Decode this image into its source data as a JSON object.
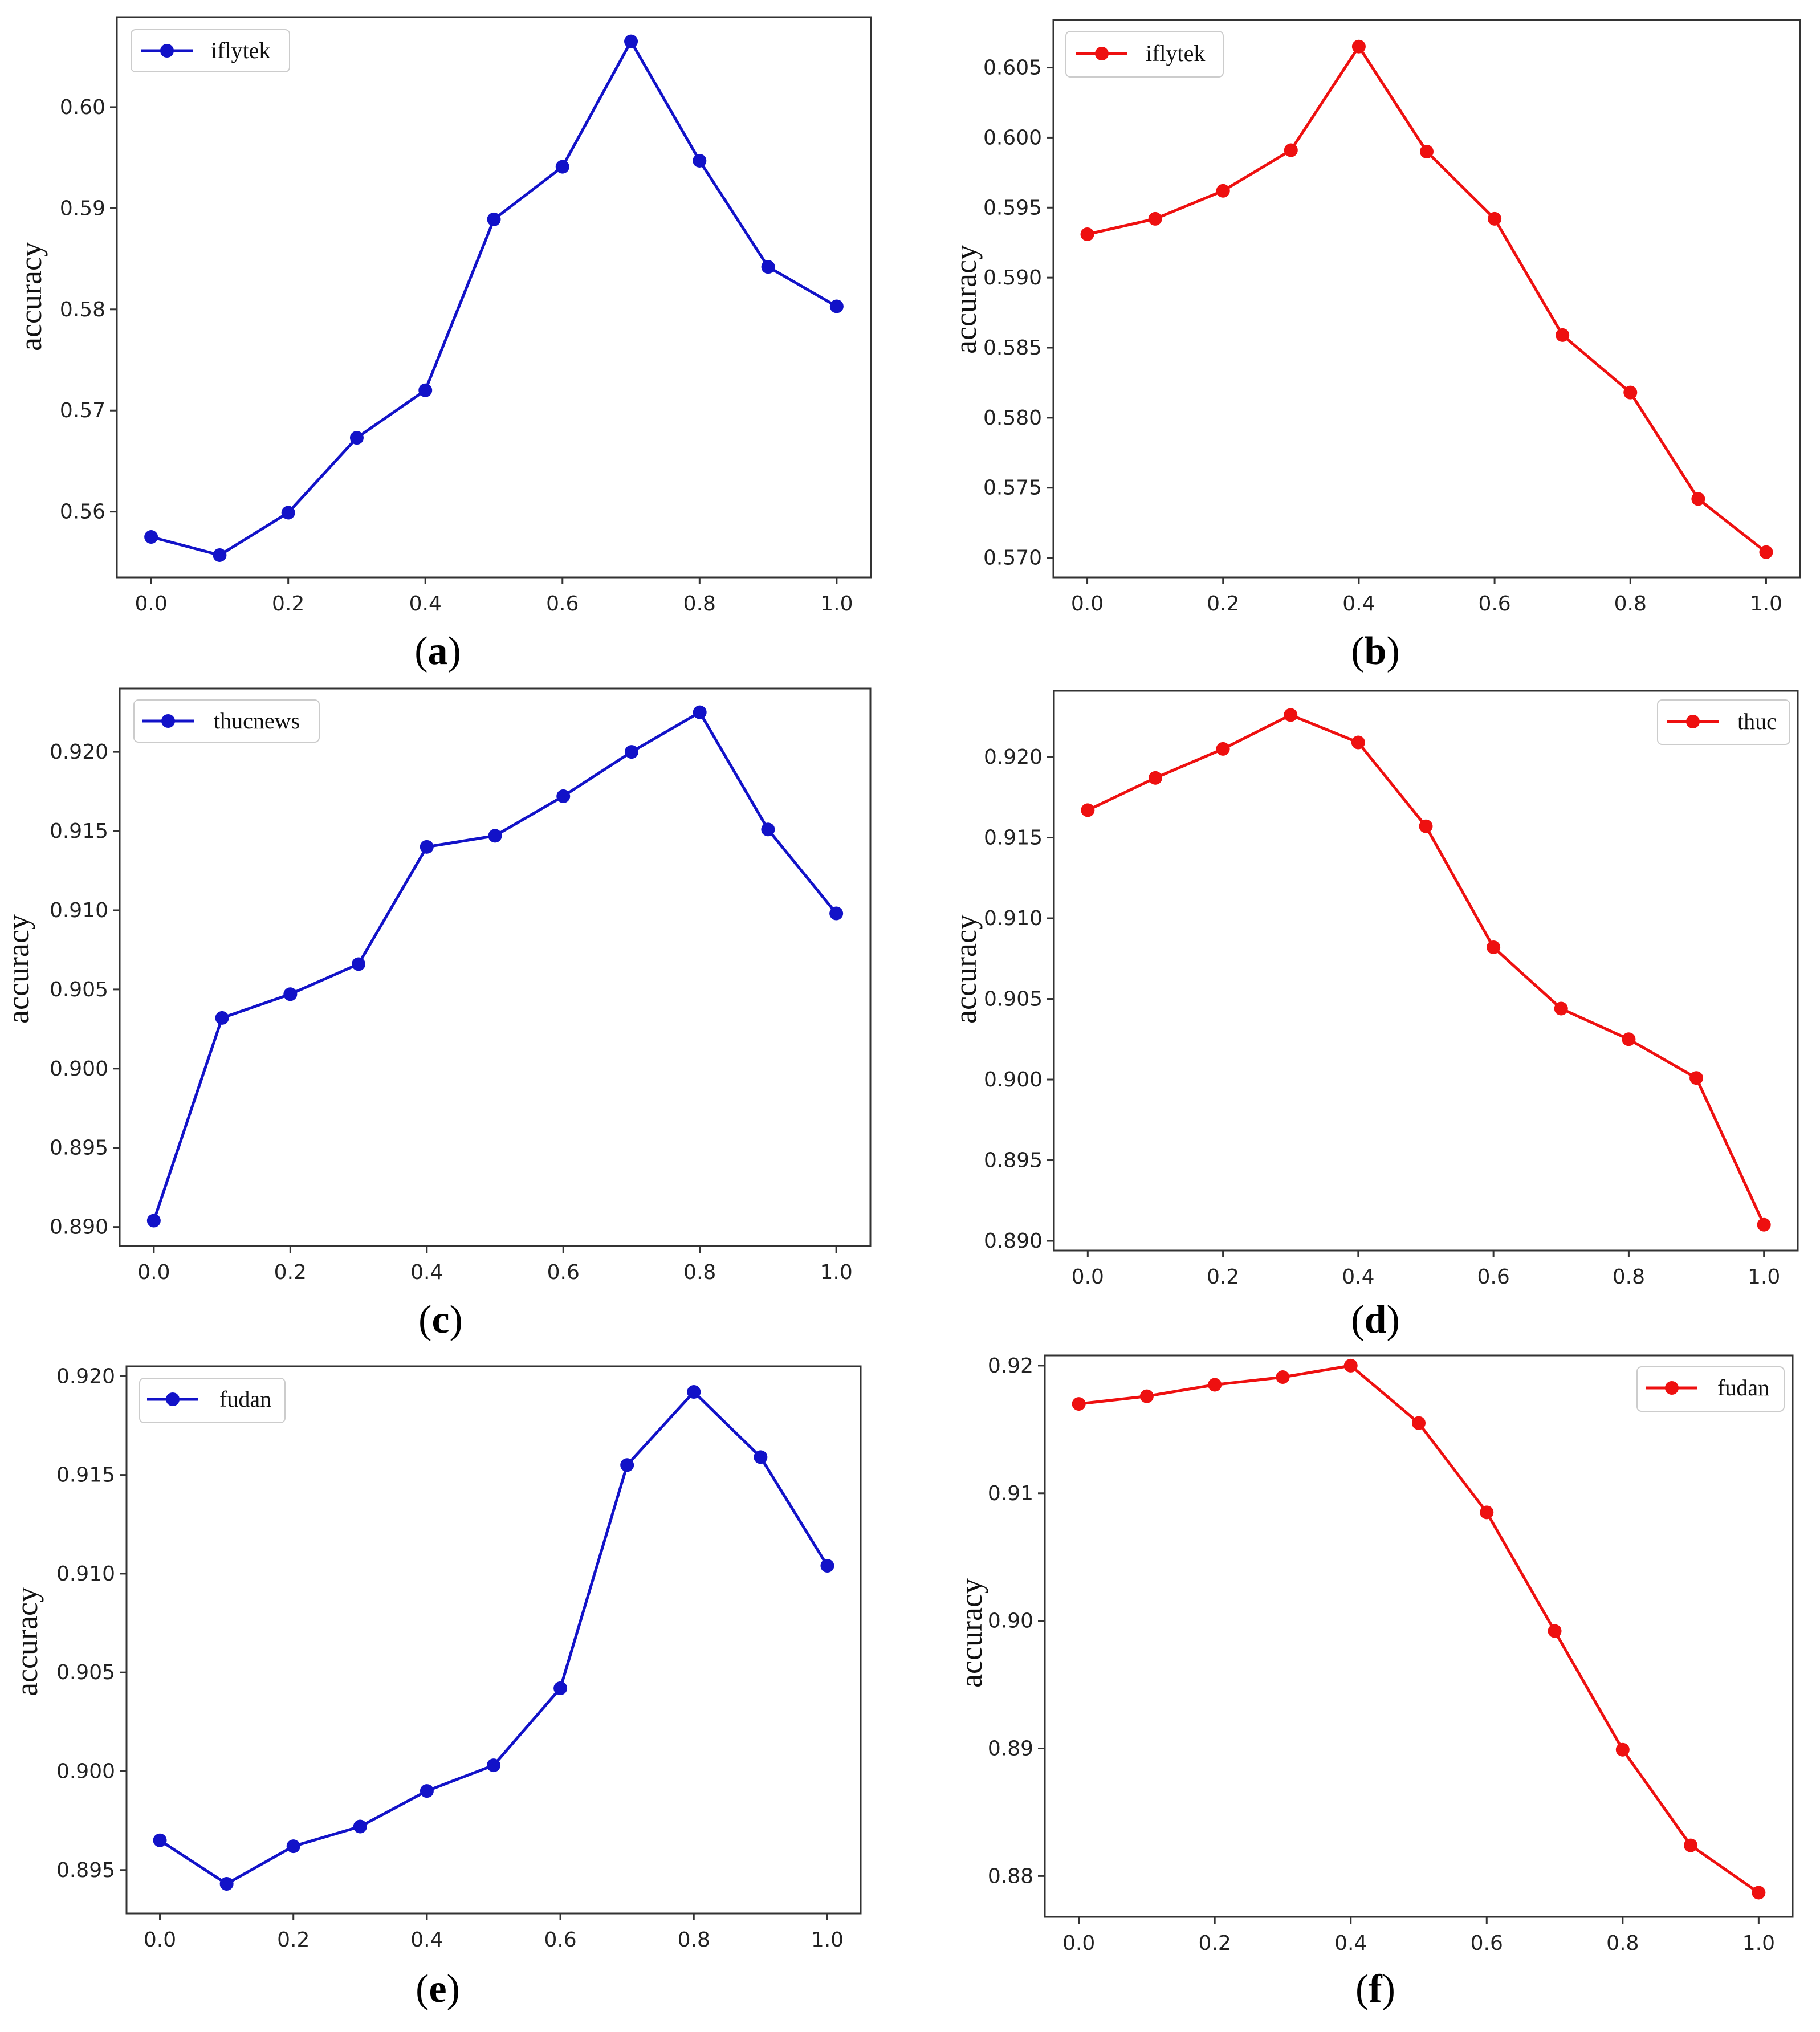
{
  "chart_data": [
    {
      "id": "a",
      "type": "line",
      "caption": "a",
      "ylabel": "accuracy",
      "xlabel": "",
      "color": "#1212c8",
      "legend": {
        "label": "iflytek",
        "position": "top-left"
      },
      "x": [
        0.0,
        0.1,
        0.2,
        0.3,
        0.4,
        0.5,
        0.6,
        0.7,
        0.8,
        0.9,
        1.0
      ],
      "values": [
        0.5575,
        0.5557,
        0.5599,
        0.5673,
        0.572,
        0.5889,
        0.5941,
        0.6065,
        0.5947,
        0.5842,
        0.5803
      ],
      "xlim": [
        -0.05,
        1.05
      ],
      "ylim": [
        0.5535,
        0.6089
      ],
      "xticks": [
        "0.0",
        "0.2",
        "0.4",
        "0.6",
        "0.8",
        "1.0"
      ],
      "yticks": [
        "0.56",
        "0.57",
        "0.58",
        "0.59",
        "0.60"
      ]
    },
    {
      "id": "b",
      "type": "line",
      "caption": "b",
      "ylabel": "accuracy",
      "xlabel": "",
      "color": "#ee1010",
      "legend": {
        "label": "iflytek",
        "position": "top-left"
      },
      "x": [
        0.0,
        0.1,
        0.2,
        0.3,
        0.4,
        0.5,
        0.6,
        0.7,
        0.8,
        0.9,
        1.0
      ],
      "values": [
        0.5931,
        0.5942,
        0.5962,
        0.5991,
        0.6065,
        0.599,
        0.5942,
        0.5859,
        0.5818,
        0.5742,
        0.5704
      ],
      "xlim": [
        -0.05,
        1.05
      ],
      "ylim": [
        0.5686,
        0.6084
      ],
      "xticks": [
        "0.0",
        "0.2",
        "0.4",
        "0.6",
        "0.8",
        "1.0"
      ],
      "yticks": [
        "0.570",
        "0.575",
        "0.580",
        "0.585",
        "0.590",
        "0.595",
        "0.600",
        "0.605"
      ]
    },
    {
      "id": "c",
      "type": "line",
      "caption": "c",
      "ylabel": "accuracy",
      "xlabel": "",
      "color": "#1212c8",
      "legend": {
        "label": "thucnews",
        "position": "top-left"
      },
      "x": [
        0.0,
        0.1,
        0.2,
        0.3,
        0.4,
        0.5,
        0.6,
        0.7,
        0.8,
        0.9,
        1.0
      ],
      "values": [
        0.8904,
        0.9032,
        0.9047,
        0.9066,
        0.914,
        0.9147,
        0.9172,
        0.92,
        0.9225,
        0.9151,
        0.9098
      ],
      "xlim": [
        -0.05,
        1.05
      ],
      "ylim": [
        0.8888,
        0.924
      ],
      "xticks": [
        "0.0",
        "0.2",
        "0.4",
        "0.6",
        "0.8",
        "1.0"
      ],
      "yticks": [
        "0.890",
        "0.895",
        "0.900",
        "0.905",
        "0.910",
        "0.915",
        "0.920"
      ]
    },
    {
      "id": "d",
      "type": "line",
      "caption": "d",
      "ylabel": "accuracy",
      "xlabel": "",
      "color": "#ee1010",
      "legend": {
        "label": "thuc",
        "position": "top-right"
      },
      "x": [
        0.0,
        0.1,
        0.2,
        0.3,
        0.4,
        0.5,
        0.6,
        0.7,
        0.8,
        0.9,
        1.0
      ],
      "values": [
        0.9167,
        0.9187,
        0.9205,
        0.9226,
        0.9209,
        0.9157,
        0.9082,
        0.9044,
        0.9025,
        0.9001,
        0.891
      ],
      "xlim": [
        -0.05,
        1.05
      ],
      "ylim": [
        0.8894,
        0.9241
      ],
      "xticks": [
        "0.0",
        "0.2",
        "0.4",
        "0.6",
        "0.8",
        "1.0"
      ],
      "yticks": [
        "0.890",
        "0.895",
        "0.900",
        "0.905",
        "0.910",
        "0.915",
        "0.920"
      ]
    },
    {
      "id": "e",
      "type": "line",
      "caption": "e",
      "ylabel": "accuracy",
      "xlabel": "",
      "color": "#1212c8",
      "legend": {
        "label": "fudan",
        "position": "top-left"
      },
      "x": [
        0.0,
        0.1,
        0.2,
        0.3,
        0.4,
        0.5,
        0.6,
        0.7,
        0.8,
        0.9,
        1.0
      ],
      "values": [
        0.8965,
        0.8943,
        0.8962,
        0.8972,
        0.899,
        0.9003,
        0.9042,
        0.9155,
        0.9192,
        0.9159,
        0.9104
      ],
      "xlim": [
        -0.05,
        1.05
      ],
      "ylim": [
        0.8928,
        0.9205
      ],
      "xticks": [
        "0.0",
        "0.2",
        "0.4",
        "0.6",
        "0.8",
        "1.0"
      ],
      "yticks": [
        "0.895",
        "0.900",
        "0.905",
        "0.910",
        "0.915",
        "0.920"
      ]
    },
    {
      "id": "f",
      "type": "line",
      "caption": "f",
      "ylabel": "accuracy",
      "xlabel": "",
      "color": "#ee1010",
      "legend": {
        "label": "fudan",
        "position": "top-right"
      },
      "x": [
        0.0,
        0.1,
        0.2,
        0.3,
        0.4,
        0.5,
        0.6,
        0.7,
        0.8,
        0.9,
        1.0
      ],
      "values": [
        0.917,
        0.9176,
        0.9185,
        0.9191,
        0.92,
        0.9155,
        0.9085,
        0.8992,
        0.8899,
        0.8824,
        0.8787
      ],
      "xlim": [
        -0.05,
        1.05
      ],
      "ylim": [
        0.8768,
        0.9208
      ],
      "xticks": [
        "0.0",
        "0.2",
        "0.4",
        "0.6",
        "0.8",
        "1.0"
      ],
      "yticks": [
        "0.88",
        "0.89",
        "0.90",
        "0.91",
        "0.92"
      ]
    }
  ]
}
